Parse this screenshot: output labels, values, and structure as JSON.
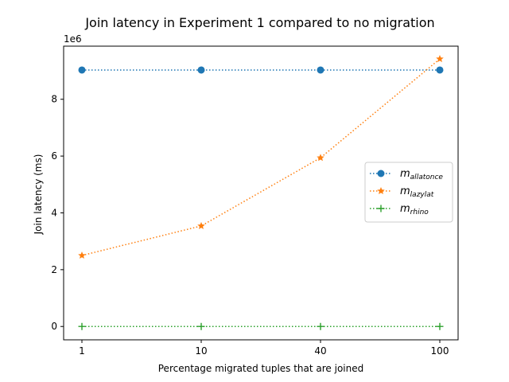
{
  "chart_data": {
    "type": "line",
    "title": "Join latency in Experiment 1 compared to no migration",
    "xlabel": "Percentage migrated tuples that are joined",
    "ylabel": "Join latency (ms)",
    "y_offset_label": "1e6",
    "categories": [
      "1",
      "10",
      "40",
      "100"
    ],
    "y_ticks": [
      0,
      2,
      4,
      6,
      8
    ],
    "ylim": [
      -0.47,
      9.87
    ],
    "y_scale": 1000000,
    "grid": false,
    "legend_position": "center-right",
    "series": [
      {
        "name_base": "m",
        "name_sub": "allatonce",
        "values": [
          9.03,
          9.03,
          9.03,
          9.03
        ],
        "color": "#1f77b4",
        "marker": "circle",
        "linestyle": "dotted"
      },
      {
        "name_base": "m",
        "name_sub": "lazylat",
        "values": [
          2.5,
          3.54,
          5.94,
          9.42
        ],
        "color": "#ff7f0e",
        "marker": "star",
        "linestyle": "dotted"
      },
      {
        "name_base": "m",
        "name_sub": "rhino",
        "values": [
          0.0,
          0.0,
          0.0,
          0.0
        ],
        "color": "#2ca02c",
        "marker": "plus",
        "linestyle": "dotted"
      }
    ]
  }
}
